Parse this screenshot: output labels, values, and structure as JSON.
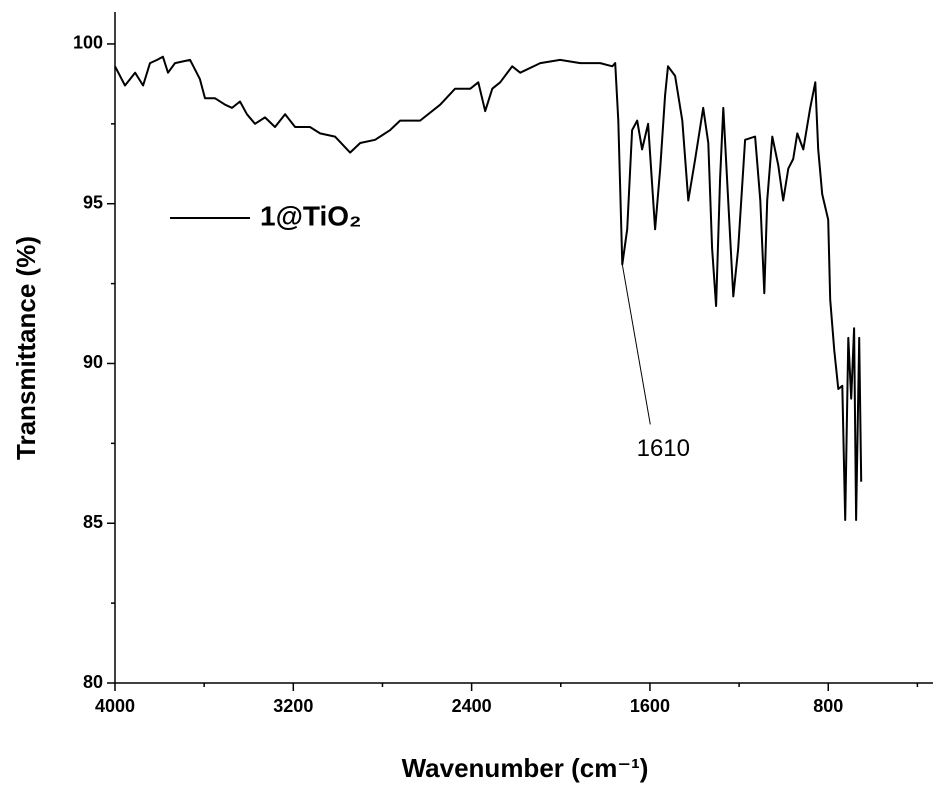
{
  "chart_data": {
    "type": "line",
    "x_label": "Wavenumber (cm⁻¹)",
    "y_label": "Transmittance (%)",
    "xlim": [
      4000,
      330
    ],
    "ylim": [
      80,
      101
    ],
    "xticks": [
      4000,
      3200,
      2400,
      1600,
      800
    ],
    "xminorticks": [
      3600,
      2800,
      2000,
      1200,
      400
    ],
    "yticks": [
      80,
      85,
      90,
      95,
      100
    ],
    "yminorticks": [
      82.5,
      87.5,
      92.5,
      97.5
    ],
    "legend": "upper left",
    "annotations": [
      {
        "text": "1610",
        "x": 1724,
        "y": 93.1
      }
    ],
    "x": [
      4000,
      3955,
      3910,
      3874,
      3843,
      3811,
      3785,
      3762,
      3731,
      3663,
      3619,
      3596,
      3551,
      3506,
      3475,
      3439,
      3408,
      3372,
      3327,
      3282,
      3237,
      3192,
      3125,
      3080,
      3013,
      2945,
      2900,
      2833,
      2766,
      2721,
      2631,
      2541,
      2474,
      2406,
      2370,
      2339,
      2307,
      2272,
      2218,
      2182,
      2092,
      2003,
      1913,
      1823,
      1769,
      1756,
      1742,
      1724,
      1702,
      1680,
      1657,
      1635,
      1608,
      1577,
      1554,
      1532,
      1519,
      1487,
      1455,
      1428,
      1397,
      1361,
      1338,
      1321,
      1303,
      1285,
      1271,
      1249,
      1226,
      1204,
      1173,
      1128,
      1105,
      1087,
      1074,
      1051,
      1024,
      1002,
      979,
      957,
      939,
      912,
      881,
      858,
      845,
      827,
      800,
      791,
      773,
      755,
      737,
      724,
      710,
      697,
      684,
      675,
      661,
      652
    ],
    "series": [
      {
        "name": "1@TiO₂",
        "color": "#000000",
        "values": [
          99.3,
          98.7,
          99.1,
          98.7,
          99.4,
          99.5,
          99.6,
          99.1,
          99.4,
          99.5,
          98.9,
          98.3,
          98.3,
          98.1,
          98.0,
          98.2,
          97.8,
          97.5,
          97.7,
          97.4,
          97.8,
          97.4,
          97.4,
          97.2,
          97.1,
          96.6,
          96.9,
          97.0,
          97.3,
          97.6,
          97.6,
          98.1,
          98.6,
          98.6,
          98.8,
          97.9,
          98.6,
          98.8,
          99.3,
          99.1,
          99.4,
          99.5,
          99.4,
          99.4,
          99.3,
          99.4,
          97.6,
          93.1,
          94.2,
          97.3,
          97.6,
          96.7,
          97.5,
          94.2,
          96.1,
          98.4,
          99.3,
          99.0,
          97.6,
          95.1,
          96.4,
          98.0,
          96.9,
          93.6,
          91.8,
          95.8,
          98.0,
          95.1,
          92.1,
          93.6,
          97.0,
          97.1,
          95.1,
          92.2,
          95.1,
          97.1,
          96.2,
          95.1,
          96.1,
          96.4,
          97.2,
          96.7,
          98.0,
          98.8,
          96.7,
          95.3,
          94.5,
          92.0,
          90.4,
          89.2,
          89.3,
          85.1,
          90.8,
          88.9,
          91.1,
          85.1,
          90.8,
          86.3
        ]
      }
    ]
  }
}
